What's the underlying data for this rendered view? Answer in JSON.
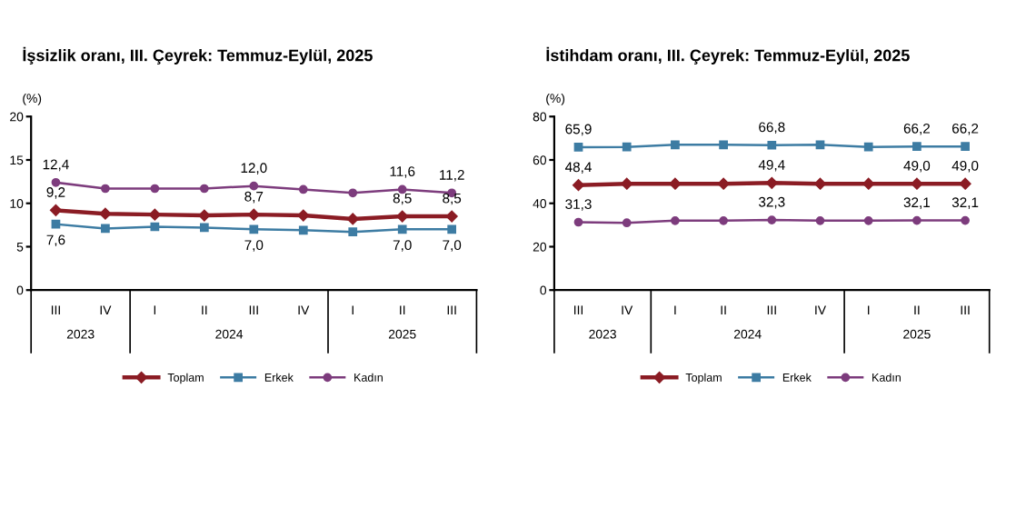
{
  "chart_data": [
    {
      "type": "line",
      "title": "İşsizlik oranı, III. Çeyrek: Temmuz-Eylül, 2025",
      "ylabel": "(%)",
      "categories": [
        "III",
        "IV",
        "I",
        "II",
        "III",
        "IV",
        "I",
        "II",
        "III"
      ],
      "annotations": [
        "2023",
        "2024",
        "2025"
      ],
      "ylim": [
        0,
        20
      ],
      "yticks": [
        0,
        5,
        10,
        15,
        20
      ],
      "grid": false,
      "legend": "bottom",
      "series": [
        {
          "name": "Toplam",
          "color": "#8b1c24",
          "marker": "diamond",
          "values": [
            9.2,
            8.8,
            8.7,
            8.6,
            8.7,
            8.6,
            8.2,
            8.5,
            8.5
          ],
          "value_labels": [
            "9,2",
            null,
            null,
            null,
            "8,7",
            null,
            null,
            "8,5",
            "8,5"
          ]
        },
        {
          "name": "Erkek",
          "color": "#3d7ca3",
          "marker": "square",
          "values": [
            7.6,
            7.1,
            7.3,
            7.2,
            7.0,
            6.9,
            6.7,
            7.0,
            7.0
          ],
          "value_labels": [
            "7,6",
            null,
            null,
            null,
            "7,0",
            null,
            null,
            "7,0",
            "7,0"
          ]
        },
        {
          "name": "Kadın",
          "color": "#7d3c7d",
          "marker": "circle",
          "values": [
            12.4,
            11.7,
            11.7,
            11.7,
            12.0,
            11.6,
            11.2,
            11.6,
            11.2
          ],
          "value_labels": [
            "12,4",
            null,
            null,
            null,
            "12,0",
            null,
            null,
            "11,6",
            "11,2"
          ]
        }
      ]
    },
    {
      "type": "line",
      "title": "İstihdam oranı, III. Çeyrek: Temmuz-Eylül, 2025",
      "ylabel": "(%)",
      "categories": [
        "III",
        "IV",
        "I",
        "II",
        "III",
        "IV",
        "I",
        "II",
        "III"
      ],
      "annotations": [
        "2023",
        "2024",
        "2025"
      ],
      "ylim": [
        0,
        80
      ],
      "yticks": [
        0,
        20,
        40,
        60,
        80
      ],
      "grid": false,
      "legend": "bottom",
      "series": [
        {
          "name": "Toplam",
          "color": "#8b1c24",
          "marker": "diamond",
          "values": [
            48.4,
            49,
            49,
            49,
            49.4,
            49,
            49,
            49.0,
            49.0
          ],
          "value_labels": [
            "48,4",
            null,
            null,
            null,
            "49,4",
            null,
            null,
            "49,0",
            "49,0"
          ]
        },
        {
          "name": "Erkek",
          "color": "#3d7ca3",
          "marker": "square",
          "values": [
            65.9,
            66,
            67,
            67,
            66.8,
            67,
            66,
            66.2,
            66.2
          ],
          "value_labels": [
            "65,9",
            null,
            null,
            null,
            "66,8",
            null,
            null,
            "66,2",
            "66,2"
          ]
        },
        {
          "name": "Kadın",
          "color": "#7d3c7d",
          "marker": "circle",
          "values": [
            31.3,
            31,
            32,
            32,
            32.3,
            32,
            32,
            32.1,
            32.1
          ],
          "value_labels": [
            "31,3",
            null,
            null,
            null,
            "32,3",
            null,
            null,
            "32,1",
            "32,1"
          ]
        }
      ]
    }
  ]
}
